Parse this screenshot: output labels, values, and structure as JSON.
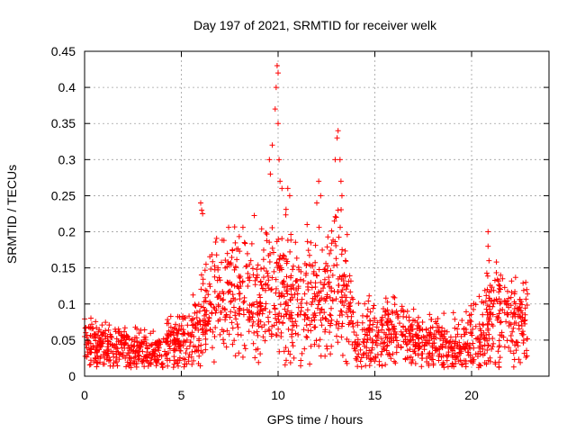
{
  "chart_data": {
    "type": "scatter",
    "title": "Day 197 of 2021, SRMTID for receiver welk",
    "xlabel": "GPS time / hours",
    "ylabel": "SRMTID / TECUs",
    "xlim": [
      0,
      24
    ],
    "ylim": [
      0,
      0.45
    ],
    "x_ticks": [
      0,
      5,
      10,
      15,
      20
    ],
    "x_tick_labels": [
      "0",
      "5",
      "10",
      "15",
      "20"
    ],
    "y_ticks": [
      0,
      0.05,
      0.1,
      0.15,
      0.2,
      0.25,
      0.3,
      0.35,
      0.4,
      0.45
    ],
    "y_tick_labels": [
      "0",
      "0.05",
      "0.1",
      "0.15",
      "0.2",
      "0.25",
      "0.3",
      "0.35",
      "0.4",
      "0.45"
    ],
    "grid": true,
    "marker": "+",
    "color": "#ff0000",
    "envelope": {
      "note": "approximate typical value and spread of the dense point cloud vs GPS hour (data units)",
      "x": [
        0,
        0.5,
        1,
        2,
        3,
        4,
        4.5,
        5,
        5.5,
        6,
        6.5,
        7,
        8,
        9,
        9.5,
        10,
        10.5,
        11,
        11.5,
        12,
        12.5,
        13,
        13.5,
        14,
        15,
        16,
        17,
        18,
        19,
        19.5,
        20,
        20.5,
        21,
        21.5,
        22,
        22.5,
        22.9
      ],
      "center": [
        0.05,
        0.045,
        0.04,
        0.04,
        0.035,
        0.035,
        0.045,
        0.05,
        0.05,
        0.07,
        0.1,
        0.12,
        0.12,
        0.1,
        0.12,
        0.13,
        0.11,
        0.1,
        0.1,
        0.11,
        0.11,
        0.12,
        0.12,
        0.05,
        0.06,
        0.07,
        0.05,
        0.045,
        0.04,
        0.04,
        0.05,
        0.06,
        0.08,
        0.09,
        0.08,
        0.07,
        0.07
      ],
      "spread": [
        0.015,
        0.015,
        0.015,
        0.015,
        0.015,
        0.015,
        0.02,
        0.02,
        0.025,
        0.035,
        0.04,
        0.04,
        0.04,
        0.045,
        0.05,
        0.05,
        0.05,
        0.04,
        0.04,
        0.045,
        0.045,
        0.045,
        0.045,
        0.02,
        0.025,
        0.025,
        0.02,
        0.02,
        0.02,
        0.02,
        0.025,
        0.03,
        0.035,
        0.035,
        0.03,
        0.025,
        0.025
      ]
    },
    "notable_points": [
      {
        "x": 6.0,
        "y": 0.24
      },
      {
        "x": 6.05,
        "y": 0.23
      },
      {
        "x": 6.1,
        "y": 0.225
      },
      {
        "x": 9.55,
        "y": 0.3
      },
      {
        "x": 9.6,
        "y": 0.28
      },
      {
        "x": 9.7,
        "y": 0.32
      },
      {
        "x": 9.85,
        "y": 0.37
      },
      {
        "x": 9.9,
        "y": 0.4
      },
      {
        "x": 9.95,
        "y": 0.43
      },
      {
        "x": 10.0,
        "y": 0.42
      },
      {
        "x": 10.0,
        "y": 0.35
      },
      {
        "x": 10.05,
        "y": 0.3
      },
      {
        "x": 10.1,
        "y": 0.27
      },
      {
        "x": 10.2,
        "y": 0.26
      },
      {
        "x": 10.5,
        "y": 0.26
      },
      {
        "x": 10.6,
        "y": 0.25
      },
      {
        "x": 12.1,
        "y": 0.27
      },
      {
        "x": 12.2,
        "y": 0.25
      },
      {
        "x": 11.5,
        "y": 0.21
      },
      {
        "x": 12.0,
        "y": 0.24
      },
      {
        "x": 12.95,
        "y": 0.3
      },
      {
        "x": 13.05,
        "y": 0.33
      },
      {
        "x": 13.1,
        "y": 0.34
      },
      {
        "x": 13.2,
        "y": 0.3
      },
      {
        "x": 13.25,
        "y": 0.27
      },
      {
        "x": 13.3,
        "y": 0.25
      },
      {
        "x": 13.1,
        "y": 0.23
      },
      {
        "x": 13.0,
        "y": 0.22
      },
      {
        "x": 20.85,
        "y": 0.2
      },
      {
        "x": 20.85,
        "y": 0.18
      },
      {
        "x": 20.9,
        "y": 0.16
      },
      {
        "x": 21.5,
        "y": 0.14
      },
      {
        "x": 21.6,
        "y": 0.135
      },
      {
        "x": 22.8,
        "y": 0.13
      },
      {
        "x": 22.85,
        "y": 0.12
      }
    ]
  }
}
